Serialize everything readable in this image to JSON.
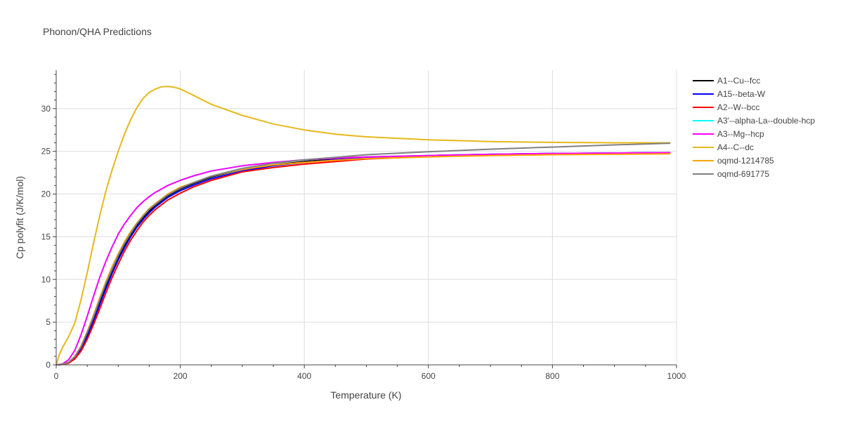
{
  "chart_data": {
    "type": "line",
    "title": "Phonon/QHA Predictions",
    "xlabel": "Temperature (K)",
    "ylabel": "Cp polyfit (J/K/mol)",
    "xlim": [
      0,
      1000
    ],
    "ylim": [
      0,
      34.5
    ],
    "xticks": [
      0,
      200,
      400,
      600,
      800,
      1000
    ],
    "yticks": [
      0,
      5,
      10,
      15,
      20,
      25,
      30
    ],
    "grid": true,
    "legend_position": "right",
    "series": [
      {
        "name": "A1--Cu--fcc",
        "color": "#000000",
        "x": [
          0,
          10,
          20,
          30,
          40,
          50,
          60,
          70,
          80,
          90,
          100,
          110,
          120,
          130,
          140,
          150,
          160,
          180,
          200,
          220,
          250,
          300,
          350,
          400,
          450,
          500,
          600,
          700,
          800,
          900,
          990
        ],
        "y": [
          0,
          0.05,
          0.3,
          0.9,
          2.0,
          3.6,
          5.4,
          7.3,
          9.2,
          11.0,
          12.6,
          14.0,
          15.2,
          16.3,
          17.2,
          18.0,
          18.7,
          19.8,
          20.6,
          21.2,
          22.0,
          22.9,
          23.4,
          23.8,
          24.1,
          24.3,
          24.5,
          24.65,
          24.75,
          24.8,
          24.85
        ]
      },
      {
        "name": "A15--beta-W",
        "color": "#0000ff",
        "x": [
          0,
          10,
          20,
          30,
          40,
          50,
          60,
          70,
          80,
          90,
          100,
          110,
          120,
          130,
          140,
          150,
          160,
          180,
          200,
          220,
          250,
          300,
          350,
          400,
          450,
          500,
          600,
          700,
          800,
          900,
          990
        ],
        "y": [
          0,
          0.05,
          0.25,
          0.8,
          1.8,
          3.3,
          5.1,
          7.0,
          8.9,
          10.7,
          12.3,
          13.7,
          15.0,
          16.1,
          17.0,
          17.8,
          18.5,
          19.6,
          20.4,
          21.0,
          21.8,
          22.7,
          23.3,
          23.7,
          24.0,
          24.2,
          24.5,
          24.65,
          24.75,
          24.8,
          24.85
        ]
      },
      {
        "name": "A2--W--bcc",
        "color": "#ff0000",
        "x": [
          0,
          10,
          20,
          30,
          40,
          50,
          60,
          70,
          80,
          90,
          100,
          110,
          120,
          130,
          140,
          150,
          160,
          180,
          200,
          220,
          250,
          300,
          350,
          400,
          450,
          500,
          600,
          700,
          800,
          900,
          990
        ],
        "y": [
          0,
          0.04,
          0.2,
          0.7,
          1.6,
          3.0,
          4.7,
          6.5,
          8.4,
          10.2,
          11.8,
          13.3,
          14.6,
          15.7,
          16.7,
          17.5,
          18.2,
          19.3,
          20.1,
          20.8,
          21.6,
          22.6,
          23.1,
          23.5,
          23.8,
          24.1,
          24.4,
          24.55,
          24.65,
          24.7,
          24.75
        ]
      },
      {
        "name": "A3'--alpha-La--double-hcp",
        "color": "#00ffff",
        "x": [
          0,
          10,
          20,
          30,
          40,
          50,
          60,
          70,
          80,
          90,
          100,
          110,
          120,
          130,
          140,
          150,
          160,
          180,
          200,
          220,
          250,
          300,
          350,
          400,
          450,
          500,
          600,
          700,
          800,
          900,
          990
        ],
        "y": [
          0,
          0.1,
          0.6,
          1.7,
          3.5,
          5.7,
          8.0,
          10.2,
          12.1,
          13.8,
          15.3,
          16.5,
          17.5,
          18.4,
          19.1,
          19.7,
          20.2,
          21.0,
          21.6,
          22.1,
          22.7,
          23.3,
          23.7,
          24.0,
          24.2,
          24.35,
          24.5,
          24.65,
          24.75,
          24.8,
          24.85
        ]
      },
      {
        "name": "A3--Mg--hcp",
        "color": "#ff00ff",
        "x": [
          0,
          10,
          20,
          30,
          40,
          50,
          60,
          70,
          80,
          90,
          100,
          110,
          120,
          130,
          140,
          150,
          160,
          180,
          200,
          220,
          250,
          300,
          350,
          400,
          450,
          500,
          600,
          700,
          800,
          900,
          990
        ],
        "y": [
          0,
          0.1,
          0.6,
          1.7,
          3.5,
          5.7,
          8.0,
          10.2,
          12.1,
          13.8,
          15.3,
          16.5,
          17.5,
          18.4,
          19.1,
          19.7,
          20.2,
          21.0,
          21.6,
          22.1,
          22.7,
          23.3,
          23.7,
          24.0,
          24.2,
          24.35,
          24.5,
          24.65,
          24.75,
          24.8,
          24.85
        ]
      },
      {
        "name": "A4--C--dc",
        "color": "#e6b81c",
        "x": [
          0,
          5,
          10,
          20,
          30,
          40,
          50,
          60,
          70,
          80,
          90,
          100,
          110,
          120,
          130,
          140,
          150,
          160,
          170,
          180,
          190,
          200,
          220,
          250,
          300,
          350,
          400,
          450,
          500,
          600,
          700,
          800,
          900,
          990
        ],
        "y": [
          0,
          1.2,
          2.0,
          3.3,
          4.9,
          7.6,
          10.8,
          14.2,
          17.4,
          20.3,
          22.8,
          25.0,
          27.0,
          28.7,
          30.1,
          31.2,
          31.9,
          32.3,
          32.55,
          32.6,
          32.5,
          32.3,
          31.6,
          30.5,
          29.2,
          28.2,
          27.5,
          27.0,
          26.7,
          26.35,
          26.15,
          26.05,
          26.0,
          26.0
        ]
      },
      {
        "name": "oqmd-1214785",
        "color": "#ffa500",
        "x": [
          0,
          10,
          20,
          30,
          40,
          50,
          60,
          70,
          80,
          90,
          100,
          110,
          120,
          130,
          140,
          150,
          160,
          180,
          200,
          220,
          250,
          300,
          350,
          400,
          450,
          500,
          600,
          700,
          800,
          900,
          990
        ],
        "y": [
          0,
          0.05,
          0.3,
          1.0,
          2.2,
          3.9,
          5.8,
          7.8,
          9.7,
          11.5,
          13.0,
          14.4,
          15.6,
          16.6,
          17.5,
          18.3,
          18.9,
          20.0,
          20.8,
          21.3,
          22.1,
          22.9,
          23.4,
          23.7,
          23.95,
          24.15,
          24.35,
          24.5,
          24.6,
          24.65,
          24.7
        ]
      },
      {
        "name": "oqmd-691775",
        "color": "#808080",
        "x": [
          0,
          10,
          20,
          30,
          40,
          50,
          60,
          70,
          80,
          90,
          100,
          110,
          120,
          130,
          140,
          150,
          160,
          180,
          200,
          220,
          250,
          300,
          350,
          400,
          450,
          500,
          600,
          700,
          800,
          900,
          990
        ],
        "y": [
          0,
          0.05,
          0.3,
          0.95,
          2.1,
          3.8,
          5.6,
          7.6,
          9.5,
          11.2,
          12.8,
          14.2,
          15.4,
          16.5,
          17.4,
          18.2,
          18.8,
          19.9,
          20.7,
          21.3,
          22.1,
          23.0,
          23.6,
          24.0,
          24.3,
          24.6,
          24.95,
          25.25,
          25.5,
          25.75,
          25.95
        ]
      }
    ]
  }
}
